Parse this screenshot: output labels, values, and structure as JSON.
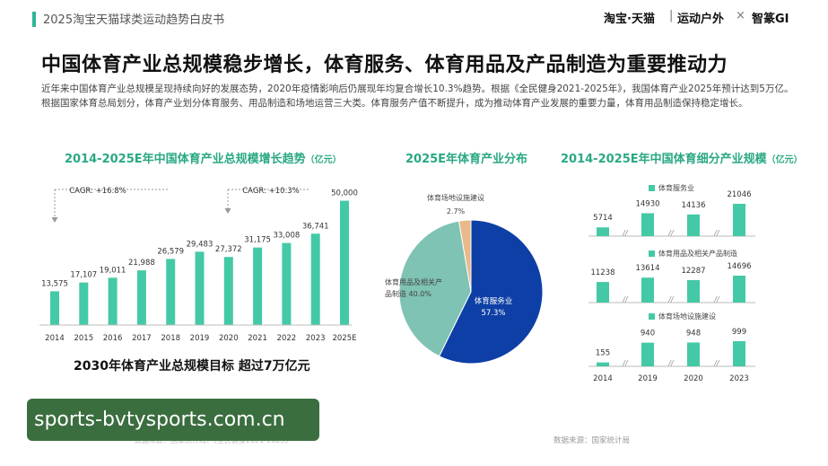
{
  "header": {
    "title": "2025淘宝天猫球类运动趋势白皮书",
    "brand_taobao": "淘宝·天猫",
    "brand_channel": "运动户外",
    "brand_sep": "×",
    "brand_partner": "智篆GI"
  },
  "main_title": "中国体育产业总规模稳步增长，体育服务、体育用品及产品制造为重要推动力",
  "intro": "近年来中国体育产业总规模呈现持续向好的发展态势，2020年疫情影响后仍展现年均复合增长10.3%趋势。根据《全民健身2021-2025年》，我国体育产业2025年预计达到5万亿。根据国家体育总局划分，体育产业划分体育服务、用品制造和场地运营三大类。体育服务产值不断提升，成为推动体育产业发展的重要力量，体育用品制造保持稳定增长。",
  "sections": {
    "left_title": "2014-2025E年中国体育产业总规模增长趋势",
    "left_unit": "（亿元）",
    "mid_title": "2025E年体育产业分布",
    "right_title": "2014-2025E年中国体育细分产业规模",
    "right_unit": "（亿元）"
  },
  "target_note": "2030年体育产业总规模目标 超过7万亿元",
  "watermark": "sports-bvtysports.com.cn",
  "source_right": "数据来源：国家统计局",
  "source_left": "数据来源：国家统计局、《全民健身2021-2025》",
  "colors": {
    "accent": "#2fb595",
    "bar": "#44c9a6",
    "pie_service": "#0d3fa6",
    "pie_goods": "#7ec3b3",
    "pie_venue": "#e9b98b"
  },
  "chart_data": [
    {
      "type": "bar",
      "title": "2014-2025E年中国体育产业总规模增长趋势",
      "unit": "亿元",
      "categories": [
        "2014",
        "2015",
        "2016",
        "2017",
        "2018",
        "2019",
        "2020",
        "2021",
        "2022",
        "2023",
        "2025E"
      ],
      "values": [
        13575,
        17107,
        19011,
        21988,
        26579,
        29483,
        27372,
        31175,
        33008,
        36741,
        50000
      ],
      "value_labels": [
        "13,575",
        "17,107",
        "19,011",
        "21,988",
        "26,579",
        "29,483",
        "27,372",
        "31,175",
        "33,008",
        "36,741",
        "50,000"
      ],
      "annotations": [
        "CAGR: +16.8%",
        "CAGR: +10.3%"
      ],
      "ylim": [
        0,
        52000
      ],
      "grid": false
    },
    {
      "type": "pie",
      "title": "2025E年体育产业分布",
      "slices": [
        {
          "label": "体育服务业",
          "value": 57.3,
          "text": "57.3%"
        },
        {
          "label": "体育用品及相关产品制造",
          "line1": "体育用品及相关产",
          "line2": "品制造",
          "value": 40.0,
          "text": "40.0%"
        },
        {
          "label": "体育场地设施建设",
          "value": 2.7,
          "text": "2.7%"
        }
      ]
    },
    {
      "type": "bar",
      "title": "2014-2025E年中国体育细分产业规模",
      "unit": "亿元",
      "categories": [
        "2014",
        "2019",
        "2020",
        "2023"
      ],
      "series": [
        {
          "name": "体育服务业",
          "values": [
            5714,
            14930,
            14136,
            21046
          ]
        },
        {
          "name": "体育用品及相关产品制造",
          "values": [
            11238,
            13614,
            12287,
            14696
          ]
        },
        {
          "name": "体育场地设施建设",
          "values": [
            155,
            940,
            948,
            999
          ]
        }
      ],
      "break_marker": "//"
    }
  ]
}
